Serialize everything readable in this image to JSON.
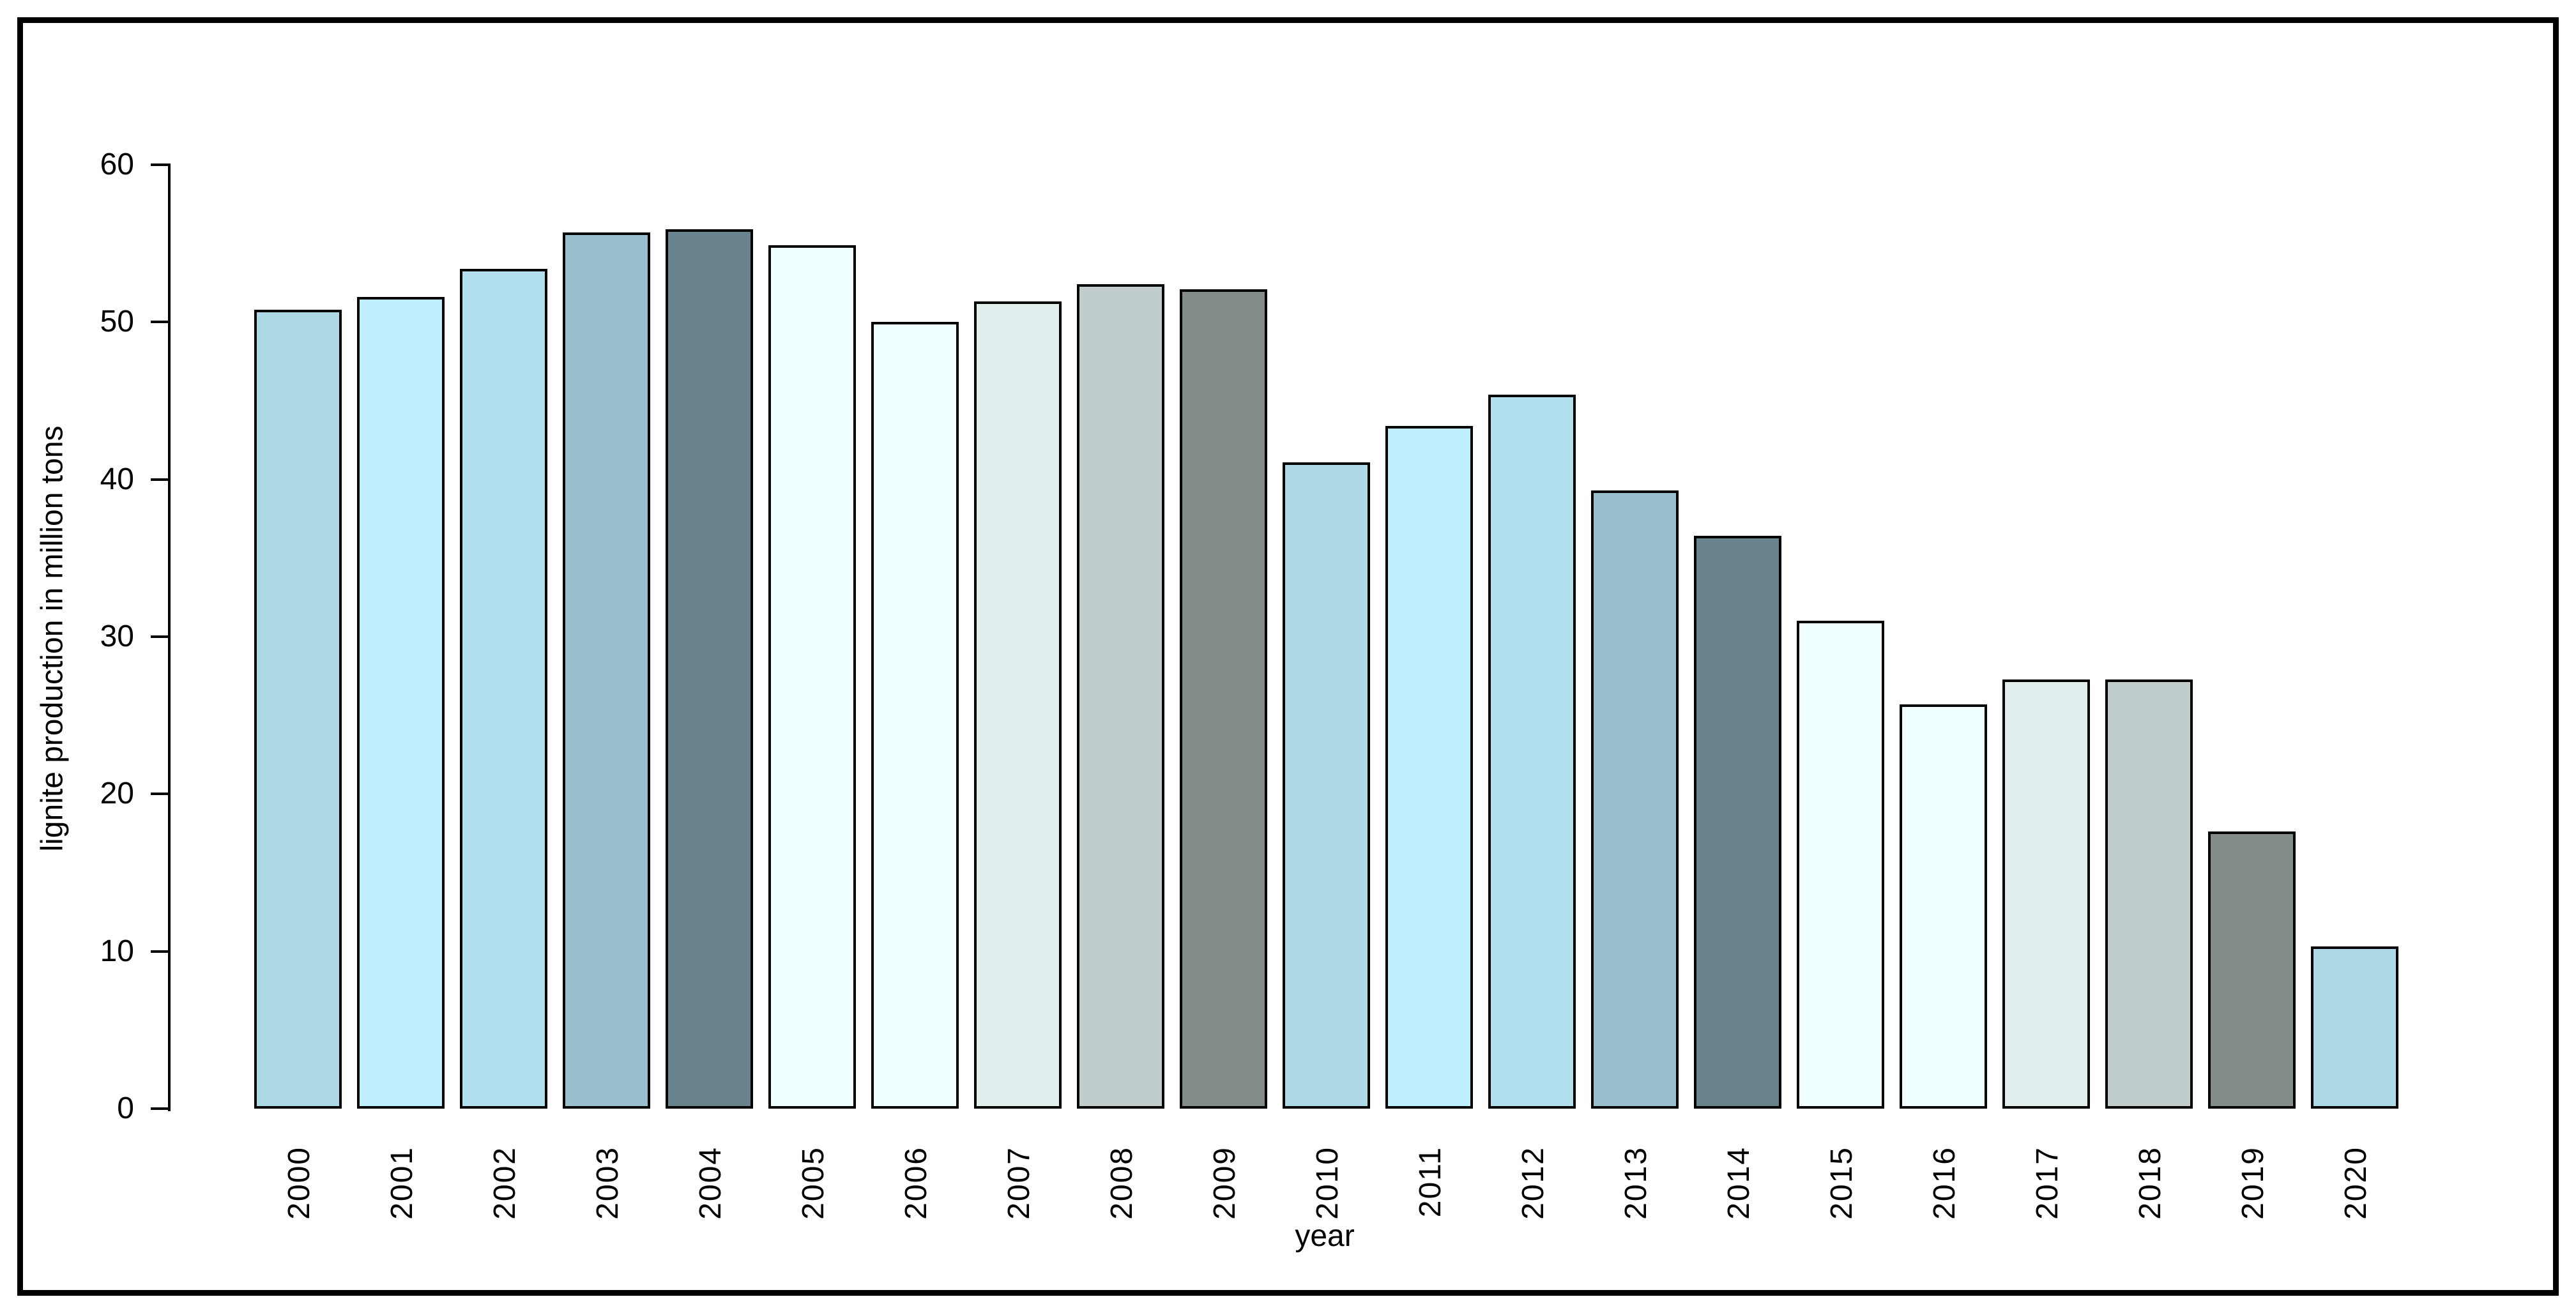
{
  "chart_data": {
    "type": "bar",
    "title": "",
    "xlabel": "year",
    "ylabel": "lignite production in million tons",
    "categories": [
      "2000",
      "2001",
      "2002",
      "2003",
      "2004",
      "2005",
      "2006",
      "2007",
      "2008",
      "2009",
      "2010",
      "2011",
      "2012",
      "2013",
      "2014",
      "2015",
      "2016",
      "2017",
      "2018",
      "2019",
      "2020"
    ],
    "values": [
      50.8,
      51.6,
      53.4,
      55.7,
      55.9,
      54.9,
      50.0,
      51.3,
      52.4,
      52.1,
      41.1,
      43.4,
      45.4,
      39.3,
      36.4,
      31.0,
      25.7,
      27.3,
      27.3,
      17.6,
      10.3
    ],
    "bar_colors": [
      "#ADD8E6",
      "#BFEFFF",
      "#B2DFEE",
      "#9AC0CD",
      "#68838B",
      "#F0FFFF",
      "#F0FFFF",
      "#E0EEEE",
      "#C1CDCD",
      "#838B8B",
      "#ADD8E6",
      "#BFEFFF",
      "#B2DFEE",
      "#9AC0CD",
      "#68838B",
      "#F0FFFF",
      "#F0FFFF",
      "#E0EEEE",
      "#C1CDCD",
      "#838B8B",
      "#ADD8E6"
    ],
    "ylim": [
      0,
      60
    ],
    "yticks": [
      0,
      10,
      20,
      30,
      40,
      50,
      60
    ],
    "grid": false,
    "legend_position": "none",
    "bar_border_color": "#000000",
    "axis_color": "#000000",
    "frame_color": "#000000",
    "background_color": "#FFFFFF"
  }
}
